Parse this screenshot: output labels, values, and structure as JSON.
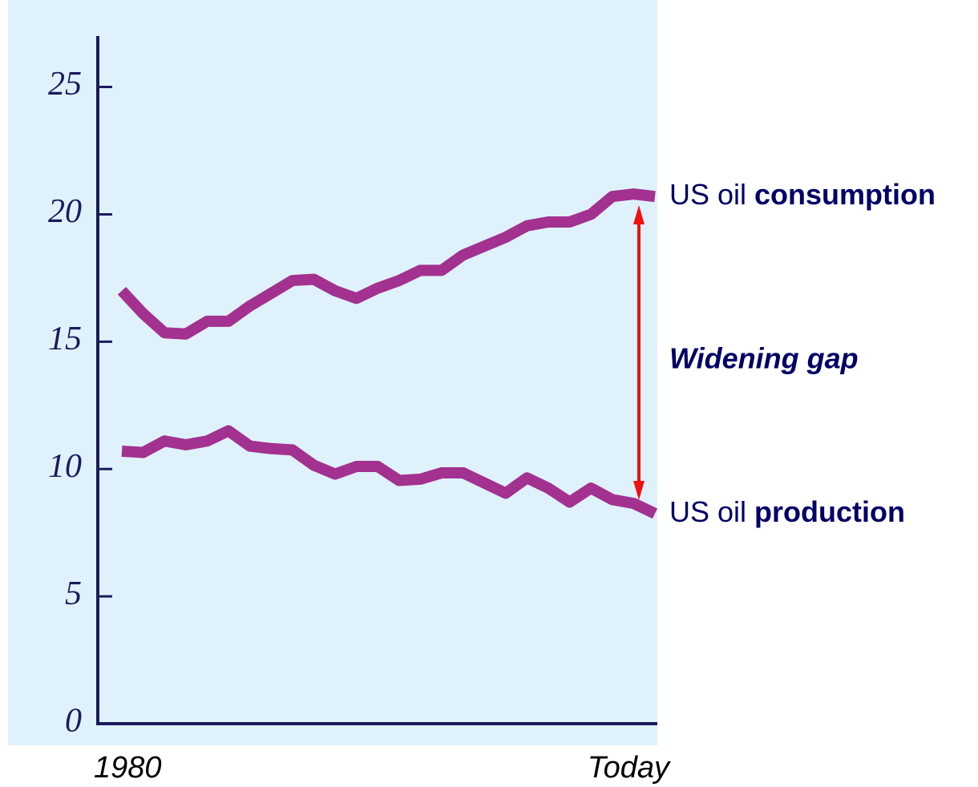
{
  "chart_data": {
    "type": "line",
    "categories": [
      "1980",
      null,
      null,
      null,
      null,
      null,
      null,
      null,
      null,
      null,
      null,
      null,
      null,
      null,
      null,
      null,
      null,
      null,
      null,
      null,
      null,
      null,
      null,
      null,
      null,
      "Today"
    ],
    "series": [
      {
        "name": "US oil consumption",
        "color": "#a3318f",
        "values": [
          17.0,
          16.1,
          15.35,
          15.3,
          15.8,
          15.8,
          16.4,
          16.9,
          17.4,
          17.45,
          17.0,
          16.7,
          17.1,
          17.4,
          17.8,
          17.8,
          18.4,
          18.75,
          19.1,
          19.55,
          19.7,
          19.7,
          20.0,
          20.7,
          20.8,
          20.7
        ]
      },
      {
        "name": "US oil production",
        "color": "#a3318f",
        "values": [
          10.7,
          10.65,
          11.1,
          10.95,
          11.1,
          11.5,
          10.9,
          10.8,
          10.75,
          10.15,
          9.8,
          10.1,
          10.1,
          9.55,
          9.6,
          9.85,
          9.85,
          9.45,
          9.05,
          9.65,
          9.25,
          8.7,
          9.25,
          8.8,
          8.65,
          8.25
        ]
      }
    ],
    "ylim": [
      0,
      27
    ],
    "yticks": [
      0,
      5,
      10,
      15,
      20,
      25
    ],
    "annotation": "Widening gap"
  }
}
